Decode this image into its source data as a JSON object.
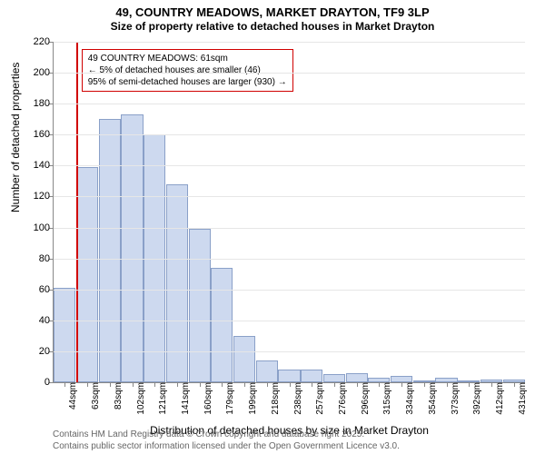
{
  "title": {
    "line1": "49, COUNTRY MEADOWS, MARKET DRAYTON, TF9 3LP",
    "line2": "Size of property relative to detached houses in Market Drayton"
  },
  "chart": {
    "type": "histogram",
    "ylabel": "Number of detached properties",
    "xlabel": "Distribution of detached houses by size in Market Drayton",
    "background_color": "#ffffff",
    "grid_color": "#e6e6e6",
    "axis_color": "#888888",
    "bar_fill": "#cdd9ef",
    "bar_stroke": "#8aa0c8",
    "marker_color": "#d00000",
    "ylim": [
      0,
      220
    ],
    "y_ticks": [
      0,
      20,
      40,
      60,
      80,
      100,
      120,
      140,
      160,
      180,
      200,
      220
    ],
    "x_tick_labels": [
      "44sqm",
      "63sqm",
      "83sqm",
      "102sqm",
      "121sqm",
      "141sqm",
      "160sqm",
      "179sqm",
      "199sqm",
      "218sqm",
      "238sqm",
      "257sqm",
      "276sqm",
      "296sqm",
      "315sqm",
      "334sqm",
      "354sqm",
      "373sqm",
      "392sqm",
      "412sqm",
      "431sqm"
    ],
    "bar_values": [
      61,
      139,
      170,
      173,
      160,
      128,
      99,
      74,
      30,
      14,
      8,
      8,
      5,
      6,
      3,
      4,
      1,
      3,
      0,
      2,
      2
    ],
    "marker": {
      "bin_index": 1,
      "callout_lines": [
        "49 COUNTRY MEADOWS: 61sqm",
        "← 5% of detached houses are smaller (46)",
        "95% of semi-detached houses are larger (930) →"
      ]
    }
  },
  "footnote": {
    "line1": "Contains HM Land Registry data © Crown copyright and database right 2025.",
    "line2": "Contains public sector information licensed under the Open Government Licence v3.0."
  }
}
